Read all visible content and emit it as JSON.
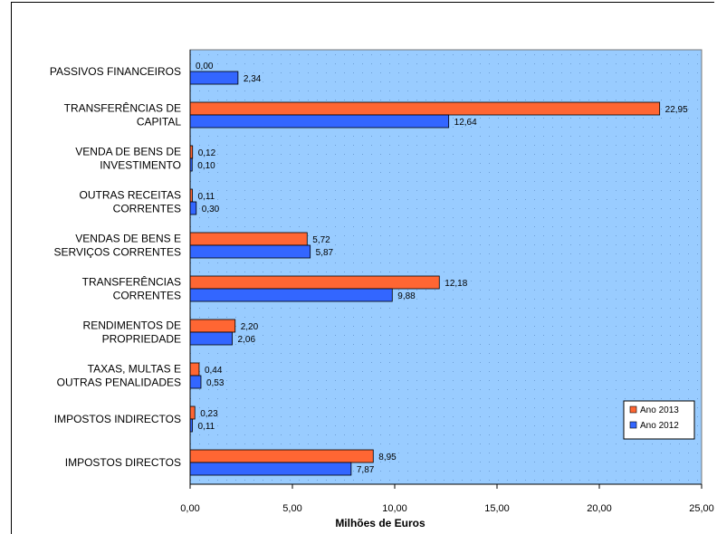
{
  "chart_data": {
    "type": "bar",
    "orientation": "horizontal",
    "categories": [
      [
        "PASSIVOS FINANCEIROS"
      ],
      [
        "TRANSFERÊNCIAS DE",
        "CAPITAL"
      ],
      [
        "VENDA DE BENS DE",
        "INVESTIMENTO"
      ],
      [
        "OUTRAS RECEITAS",
        "CORRENTES"
      ],
      [
        "VENDAS DE BENS E",
        "SERVIÇOS CORRENTES"
      ],
      [
        "TRANSFERÊNCIAS",
        "CORRENTES"
      ],
      [
        "RENDIMENTOS DE",
        "PROPRIEDADE"
      ],
      [
        "TAXAS, MULTAS E",
        "OUTRAS PENALIDADES"
      ],
      [
        "IMPOSTOS INDIRECTOS"
      ],
      [
        "IMPOSTOS DIRECTOS"
      ]
    ],
    "series": [
      {
        "name": "Ano 2013",
        "color": "#ff6633",
        "values": [
          0.0,
          22.95,
          0.12,
          0.11,
          5.72,
          12.18,
          2.2,
          0.44,
          0.23,
          8.95
        ],
        "labels": [
          "0,00",
          "22,95",
          "0,12",
          "0,11",
          "5,72",
          "12,18",
          "2,20",
          "0,44",
          "0,23",
          "8,95"
        ]
      },
      {
        "name": "Ano 2012",
        "color": "#3366ff",
        "values": [
          2.34,
          12.64,
          0.1,
          0.3,
          5.87,
          9.88,
          2.06,
          0.53,
          0.11,
          7.87
        ],
        "labels": [
          "2,34",
          "12,64",
          "0,10",
          "0,30",
          "5,87",
          "9,88",
          "2,06",
          "0,53",
          "0,11",
          "7,87"
        ]
      }
    ],
    "xlim": [
      0,
      25
    ],
    "xticks": [
      0,
      5,
      10,
      15,
      20,
      25
    ],
    "xtick_labels": [
      "0,00",
      "5,00",
      "10,00",
      "15,00",
      "20,00",
      "25,00"
    ],
    "xlabel": "Milhões de Euros",
    "plot_background": "#99ccff",
    "grid": "dotted",
    "legend_position": "bottom-right"
  }
}
